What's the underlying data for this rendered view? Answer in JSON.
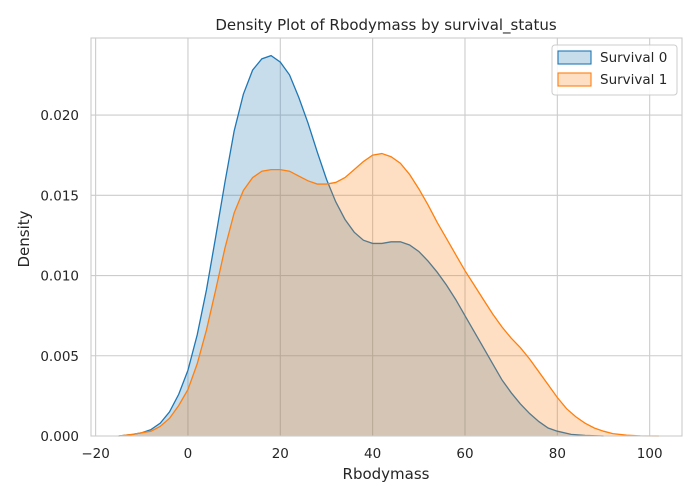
{
  "chart_data": {
    "type": "area",
    "title": "Density Plot of Rbodymass by survival_status",
    "xlabel": "Rbodymass",
    "ylabel": "Density",
    "xlim": [
      -21,
      107
    ],
    "ylim": [
      0,
      0.0248
    ],
    "xticks": [
      -20,
      0,
      20,
      40,
      60,
      80,
      100
    ],
    "xtick_labels": [
      "−20",
      "0",
      "20",
      "40",
      "60",
      "80",
      "100"
    ],
    "yticks": [
      0,
      0.005,
      0.01,
      0.015,
      0.02
    ],
    "ytick_labels": [
      "0.000",
      "0.005",
      "0.010",
      "0.015",
      "0.020"
    ],
    "grid": true,
    "legend_position": "top-right",
    "series": [
      {
        "name": "Survival 0",
        "color": "#1f77b4",
        "fill_opacity": 0.25,
        "x": [
          -15,
          -12,
          -10,
          -8,
          -6,
          -4,
          -2,
          0,
          2,
          4,
          6,
          8,
          10,
          12,
          14,
          16,
          18,
          20,
          22,
          24,
          26,
          28,
          30,
          32,
          34,
          36,
          38,
          40,
          42,
          44,
          46,
          48,
          50,
          52,
          54,
          56,
          58,
          60,
          62,
          64,
          66,
          68,
          70,
          72,
          74,
          76,
          78,
          80,
          83,
          86,
          90
        ],
        "y": [
          0,
          0.0001,
          0.0002,
          0.0004,
          0.0008,
          0.0015,
          0.0026,
          0.0041,
          0.0063,
          0.0091,
          0.0124,
          0.0158,
          0.019,
          0.0213,
          0.0228,
          0.0235,
          0.0237,
          0.0233,
          0.0225,
          0.0211,
          0.0195,
          0.0177,
          0.016,
          0.0146,
          0.0135,
          0.0127,
          0.0122,
          0.012,
          0.012,
          0.0121,
          0.0121,
          0.0119,
          0.0115,
          0.0109,
          0.0102,
          0.0094,
          0.0085,
          0.0075,
          0.0065,
          0.0055,
          0.0045,
          0.0035,
          0.0027,
          0.002,
          0.0014,
          0.0009,
          0.0005,
          0.0003,
          0.0001,
          4e-05,
          0
        ]
      },
      {
        "name": "Survival 1",
        "color": "#ff7f0e",
        "fill_opacity": 0.25,
        "x": [
          -15,
          -12,
          -10,
          -8,
          -6,
          -4,
          -2,
          0,
          2,
          4,
          6,
          8,
          10,
          12,
          14,
          16,
          18,
          20,
          22,
          24,
          26,
          28,
          30,
          32,
          34,
          36,
          38,
          40,
          42,
          44,
          46,
          48,
          50,
          52,
          54,
          56,
          58,
          60,
          62,
          64,
          66,
          68,
          70,
          72,
          74,
          76,
          78,
          80,
          82,
          84,
          86,
          88,
          90,
          92,
          95,
          98,
          102
        ],
        "y": [
          0,
          0.0001,
          0.0002,
          0.0003,
          0.0006,
          0.0011,
          0.0019,
          0.0029,
          0.0045,
          0.0066,
          0.0091,
          0.0117,
          0.0139,
          0.0153,
          0.0161,
          0.0165,
          0.0166,
          0.0166,
          0.0165,
          0.0162,
          0.0159,
          0.0157,
          0.0157,
          0.0158,
          0.0161,
          0.0166,
          0.0171,
          0.0175,
          0.0176,
          0.0174,
          0.017,
          0.0163,
          0.0154,
          0.0144,
          0.0133,
          0.0123,
          0.0113,
          0.0103,
          0.0094,
          0.0085,
          0.0076,
          0.0068,
          0.0061,
          0.0055,
          0.0048,
          0.004,
          0.0032,
          0.0024,
          0.0017,
          0.0012,
          0.0008,
          0.0005,
          0.0003,
          0.00015,
          5e-05,
          1e-05,
          0
        ]
      }
    ]
  }
}
